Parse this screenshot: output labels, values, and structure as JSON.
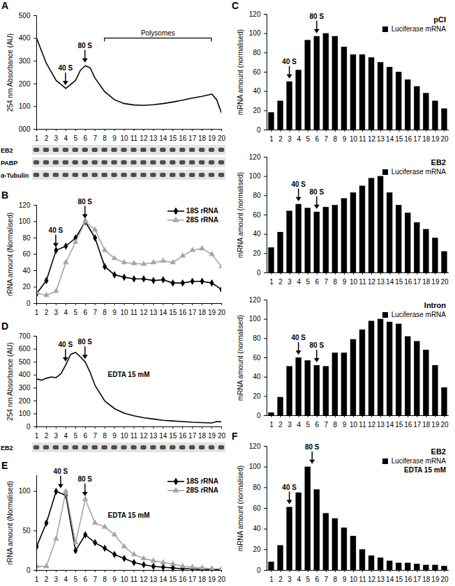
{
  "chart_data": [
    {
      "panel_label": "A",
      "type": "line",
      "ylabel": "254 nm Absorbance (AU)",
      "x": [
        1,
        2,
        3,
        4,
        5,
        5.5,
        6,
        6.5,
        7,
        8,
        9,
        10,
        11,
        12,
        13,
        14,
        15,
        16,
        17,
        18,
        19,
        19.5,
        20
      ],
      "series": [
        {
          "color": "#000000",
          "values": [
            400,
            290,
            215,
            180,
            215,
            260,
            280,
            270,
            225,
            165,
            130,
            113,
            107,
            105,
            108,
            113,
            120,
            128,
            137,
            145,
            155,
            130,
            70
          ]
        }
      ],
      "xlim": [
        1,
        20
      ],
      "xticks": [
        1,
        2,
        3,
        4,
        5,
        6,
        7,
        8,
        9,
        10,
        11,
        12,
        13,
        14,
        15,
        16,
        17,
        18,
        19,
        20
      ],
      "ylim": [
        0,
        500
      ],
      "yticks": [
        {
          "value": 0,
          "label": "000"
        },
        100,
        200,
        300,
        400,
        500
      ],
      "annotations": [
        {
          "text": "40 S",
          "x": 4
        },
        {
          "text": "80 S",
          "x": 6
        },
        {
          "text": "Polysomes",
          "x": [
            8,
            19
          ]
        }
      ],
      "blots": [
        "EB2",
        "PABP",
        "α-Tubulin"
      ]
    },
    {
      "panel_label": "B",
      "type": "line",
      "ylabel": "rRNA amount (Normalised)",
      "x": [
        1,
        2,
        3,
        4,
        5,
        6,
        7,
        8,
        9,
        10,
        11,
        12,
        13,
        14,
        15,
        16,
        17,
        18,
        19,
        20
      ],
      "series": [
        {
          "name": "18S rRNA",
          "color": "#000000",
          "marker": "diamond",
          "values": [
            12,
            28,
            65,
            70,
            80,
            100,
            80,
            45,
            35,
            32,
            30,
            30,
            28,
            29,
            25,
            25,
            27,
            27,
            25,
            17
          ]
        },
        {
          "name": "28S rRNA",
          "color": "#a6a6a6",
          "marker": "triangle",
          "values": [
            13,
            10,
            15,
            50,
            75,
            100,
            90,
            65,
            55,
            50,
            49,
            48,
            50,
            52,
            50,
            58,
            65,
            67,
            60,
            45
          ]
        }
      ],
      "xlim": [
        1,
        20
      ],
      "xticks": [
        1,
        2,
        3,
        4,
        5,
        6,
        7,
        8,
        9,
        10,
        11,
        12,
        13,
        14,
        15,
        16,
        17,
        18,
        19,
        20
      ],
      "ylim": [
        0,
        120
      ],
      "yticks": [
        0,
        20,
        40,
        60,
        80,
        100,
        120
      ],
      "legend": "top-right",
      "annotations": [
        {
          "text": "40 S",
          "x": 3
        },
        {
          "text": "80 S",
          "x": 6
        }
      ]
    },
    {
      "panel_label": "C",
      "type": "bar",
      "title": "pCI",
      "ylabel": "mRNA amount (normalised)",
      "x": [
        1,
        2,
        3,
        4,
        5,
        6,
        7,
        8,
        9,
        10,
        11,
        12,
        13,
        14,
        15,
        16,
        17,
        18,
        19,
        20
      ],
      "series": [
        {
          "name": "Luciferase mRNA",
          "color": "#000000",
          "values": [
            18,
            30,
            50,
            62,
            93,
            97,
            100,
            97,
            86,
            78,
            78,
            75,
            70,
            65,
            60,
            52,
            45,
            38,
            30,
            22
          ]
        }
      ],
      "xlim": [
        0.5,
        20.5
      ],
      "xticks": [
        1,
        2,
        3,
        4,
        5,
        6,
        7,
        8,
        9,
        10,
        11,
        12,
        13,
        14,
        15,
        16,
        17,
        18,
        19,
        20
      ],
      "ylim": [
        0,
        120
      ],
      "yticks": [
        0,
        20,
        40,
        60,
        80,
        100,
        120
      ],
      "legend": "top-right",
      "annotations": [
        {
          "text": "40 S",
          "x": 3
        },
        {
          "text": "80 S",
          "x": 6
        }
      ]
    },
    {
      "type": "bar",
      "title": "EB2",
      "ylabel": "mRNA amount (normalised)",
      "x": [
        1,
        2,
        3,
        4,
        5,
        6,
        7,
        8,
        9,
        10,
        11,
        12,
        13,
        14,
        15,
        16,
        17,
        18,
        19,
        20
      ],
      "series": [
        {
          "name": "Luciferase mRNA",
          "color": "#000000",
          "values": [
            26,
            42,
            64,
            71,
            67,
            63,
            68,
            70,
            77,
            83,
            90,
            98,
            100,
            83,
            70,
            62,
            52,
            45,
            36,
            22
          ]
        }
      ],
      "xlim": [
        0.5,
        20.5
      ],
      "xticks": [
        1,
        2,
        3,
        4,
        5,
        6,
        7,
        8,
        9,
        10,
        11,
        12,
        13,
        14,
        15,
        16,
        17,
        18,
        19,
        20
      ],
      "ylim": [
        0,
        120
      ],
      "yticks": [
        0,
        20,
        40,
        60,
        80,
        100,
        120
      ],
      "legend": "top-right",
      "annotations": [
        {
          "text": "40 S",
          "x": 4
        },
        {
          "text": "80 S",
          "x": 6
        }
      ]
    },
    {
      "type": "bar",
      "title": "Intron",
      "ylabel": "mRNA amount (normalised)",
      "x": [
        1,
        2,
        3,
        4,
        5,
        6,
        7,
        8,
        9,
        10,
        11,
        12,
        13,
        14,
        15,
        16,
        17,
        18,
        19,
        20
      ],
      "series": [
        {
          "name": "Luciferase mRNA",
          "color": "#000000",
          "values": [
            3,
            19,
            51,
            60,
            57,
            52,
            51,
            65,
            65,
            79,
            89,
            98,
            100,
            97,
            95,
            82,
            77,
            68,
            52,
            29
          ]
        }
      ],
      "xlim": [
        0.5,
        20.5
      ],
      "xticks": [
        1,
        2,
        3,
        4,
        5,
        6,
        7,
        8,
        9,
        10,
        11,
        12,
        13,
        14,
        15,
        16,
        17,
        18,
        19,
        20
      ],
      "ylim": [
        0,
        120
      ],
      "yticks": [
        0,
        20,
        40,
        60,
        80,
        100,
        120
      ],
      "legend": "top-right",
      "annotations": [
        {
          "text": "40 S",
          "x": 4
        },
        {
          "text": "80 S",
          "x": 6
        }
      ]
    },
    {
      "panel_label": "D",
      "type": "line",
      "ylabel": "254 nm Absorbance (AU)",
      "x": [
        1,
        1.5,
        2,
        2.5,
        3,
        3.5,
        4,
        4.5,
        5,
        5.5,
        6,
        6.5,
        7,
        8,
        9,
        10,
        11,
        12,
        13,
        14,
        15,
        16,
        17,
        18,
        19,
        19.5,
        20
      ],
      "series": [
        {
          "color": "#000000",
          "values": [
            370,
            360,
            375,
            385,
            380,
            410,
            480,
            560,
            575,
            540,
            500,
            420,
            320,
            200,
            140,
            105,
            85,
            70,
            60,
            50,
            45,
            40,
            35,
            32,
            30,
            40,
            38
          ]
        }
      ],
      "xlim": [
        1,
        20
      ],
      "xticks": [
        1,
        2,
        3,
        4,
        5,
        6,
        7,
        8,
        9,
        10,
        11,
        12,
        13,
        14,
        15,
        16,
        17,
        18,
        19,
        20
      ],
      "ylim": [
        0,
        700
      ],
      "yticks": [
        0,
        100,
        200,
        300,
        400,
        500,
        600,
        700
      ],
      "annotations": [
        {
          "text": "40 S",
          "x": 4
        },
        {
          "text": "80 S",
          "x": 6
        },
        {
          "text": "EDTA 15 mM"
        }
      ],
      "blots": [
        "EB2"
      ]
    },
    {
      "panel_label": "E",
      "type": "line",
      "ylabel": "rRNA amount (Normalised)",
      "x": [
        1,
        2,
        3,
        4,
        5,
        6,
        7,
        8,
        9,
        10,
        11,
        12,
        13,
        14,
        15,
        16,
        17,
        18,
        19,
        20
      ],
      "series": [
        {
          "name": "18S rRNA",
          "color": "#000000",
          "marker": "diamond",
          "values": [
            30,
            60,
            100,
            95,
            25,
            45,
            35,
            28,
            20,
            15,
            10,
            7,
            5,
            4,
            3,
            2,
            2,
            1,
            1,
            1
          ]
        },
        {
          "name": "28S rRNA",
          "color": "#a6a6a6",
          "marker": "triangle",
          "values": [
            5,
            5,
            40,
            100,
            35,
            90,
            60,
            55,
            45,
            30,
            20,
            15,
            12,
            10,
            8,
            5,
            4,
            3,
            2,
            2
          ]
        }
      ],
      "xlim": [
        1,
        20
      ],
      "xticks": [
        1,
        2,
        3,
        4,
        5,
        6,
        7,
        8,
        9,
        10,
        11,
        12,
        13,
        14,
        15,
        16,
        17,
        18,
        19,
        20
      ],
      "ylim": [
        0,
        120
      ],
      "yticks": [
        0,
        50,
        100
      ],
      "legend": "top-right",
      "annotations": [
        {
          "text": "40 S",
          "x": 3.5
        },
        {
          "text": "80 S",
          "x": 6
        },
        {
          "text": "EDTA 15 mM"
        }
      ]
    },
    {
      "panel_label": "F",
      "type": "bar",
      "title": "EB2",
      "ylabel": "mRNA amount (normalised)",
      "x": [
        1,
        2,
        3,
        4,
        5,
        6,
        7,
        8,
        9,
        10,
        11,
        12,
        13,
        14,
        15,
        16,
        17,
        18,
        19,
        20
      ],
      "series": [
        {
          "name": "Luciferase mRNA",
          "color": "#000000",
          "values": [
            8,
            24,
            61,
            75,
            100,
            78,
            55,
            50,
            41,
            33,
            20,
            14,
            12,
            9,
            7,
            7,
            6,
            5,
            5,
            4
          ]
        }
      ],
      "xlim": [
        0.5,
        20.5
      ],
      "xticks": [
        1,
        2,
        3,
        4,
        5,
        6,
        7,
        8,
        9,
        10,
        11,
        12,
        13,
        14,
        15,
        16,
        17,
        18,
        19,
        20
      ],
      "ylim": [
        0,
        120
      ],
      "yticks": [
        0,
        20,
        40,
        60,
        80,
        100,
        120
      ],
      "legend": "top-right",
      "annotations": [
        {
          "text": "40 S",
          "x": 3
        },
        {
          "text": "80 S",
          "x": 5.5
        },
        {
          "text": "EDTA 15 mM"
        }
      ]
    }
  ]
}
